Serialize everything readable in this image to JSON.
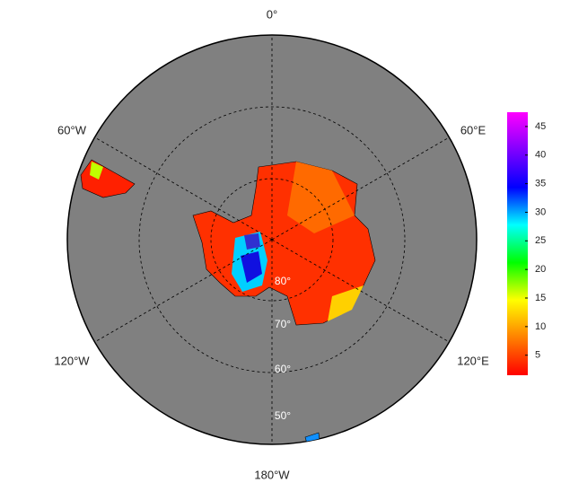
{
  "map": {
    "longitude_labels": [
      "0°",
      "60°E",
      "120°E",
      "180°W",
      "120°W",
      "60°W"
    ],
    "latitude_labels": [
      "80°",
      "70°",
      "60°",
      "50°"
    ],
    "colorbar": {
      "lim": [
        1.5,
        47.5
      ],
      "ticks": [
        5,
        10,
        15,
        20,
        25,
        30,
        35,
        40,
        45
      ],
      "colors": [
        "#ff0000",
        "#ff8000",
        "#ffff00",
        "#00ff00",
        "#00ffff",
        "#0000ff",
        "#8000ff",
        "#ff00ff"
      ]
    }
  }
}
